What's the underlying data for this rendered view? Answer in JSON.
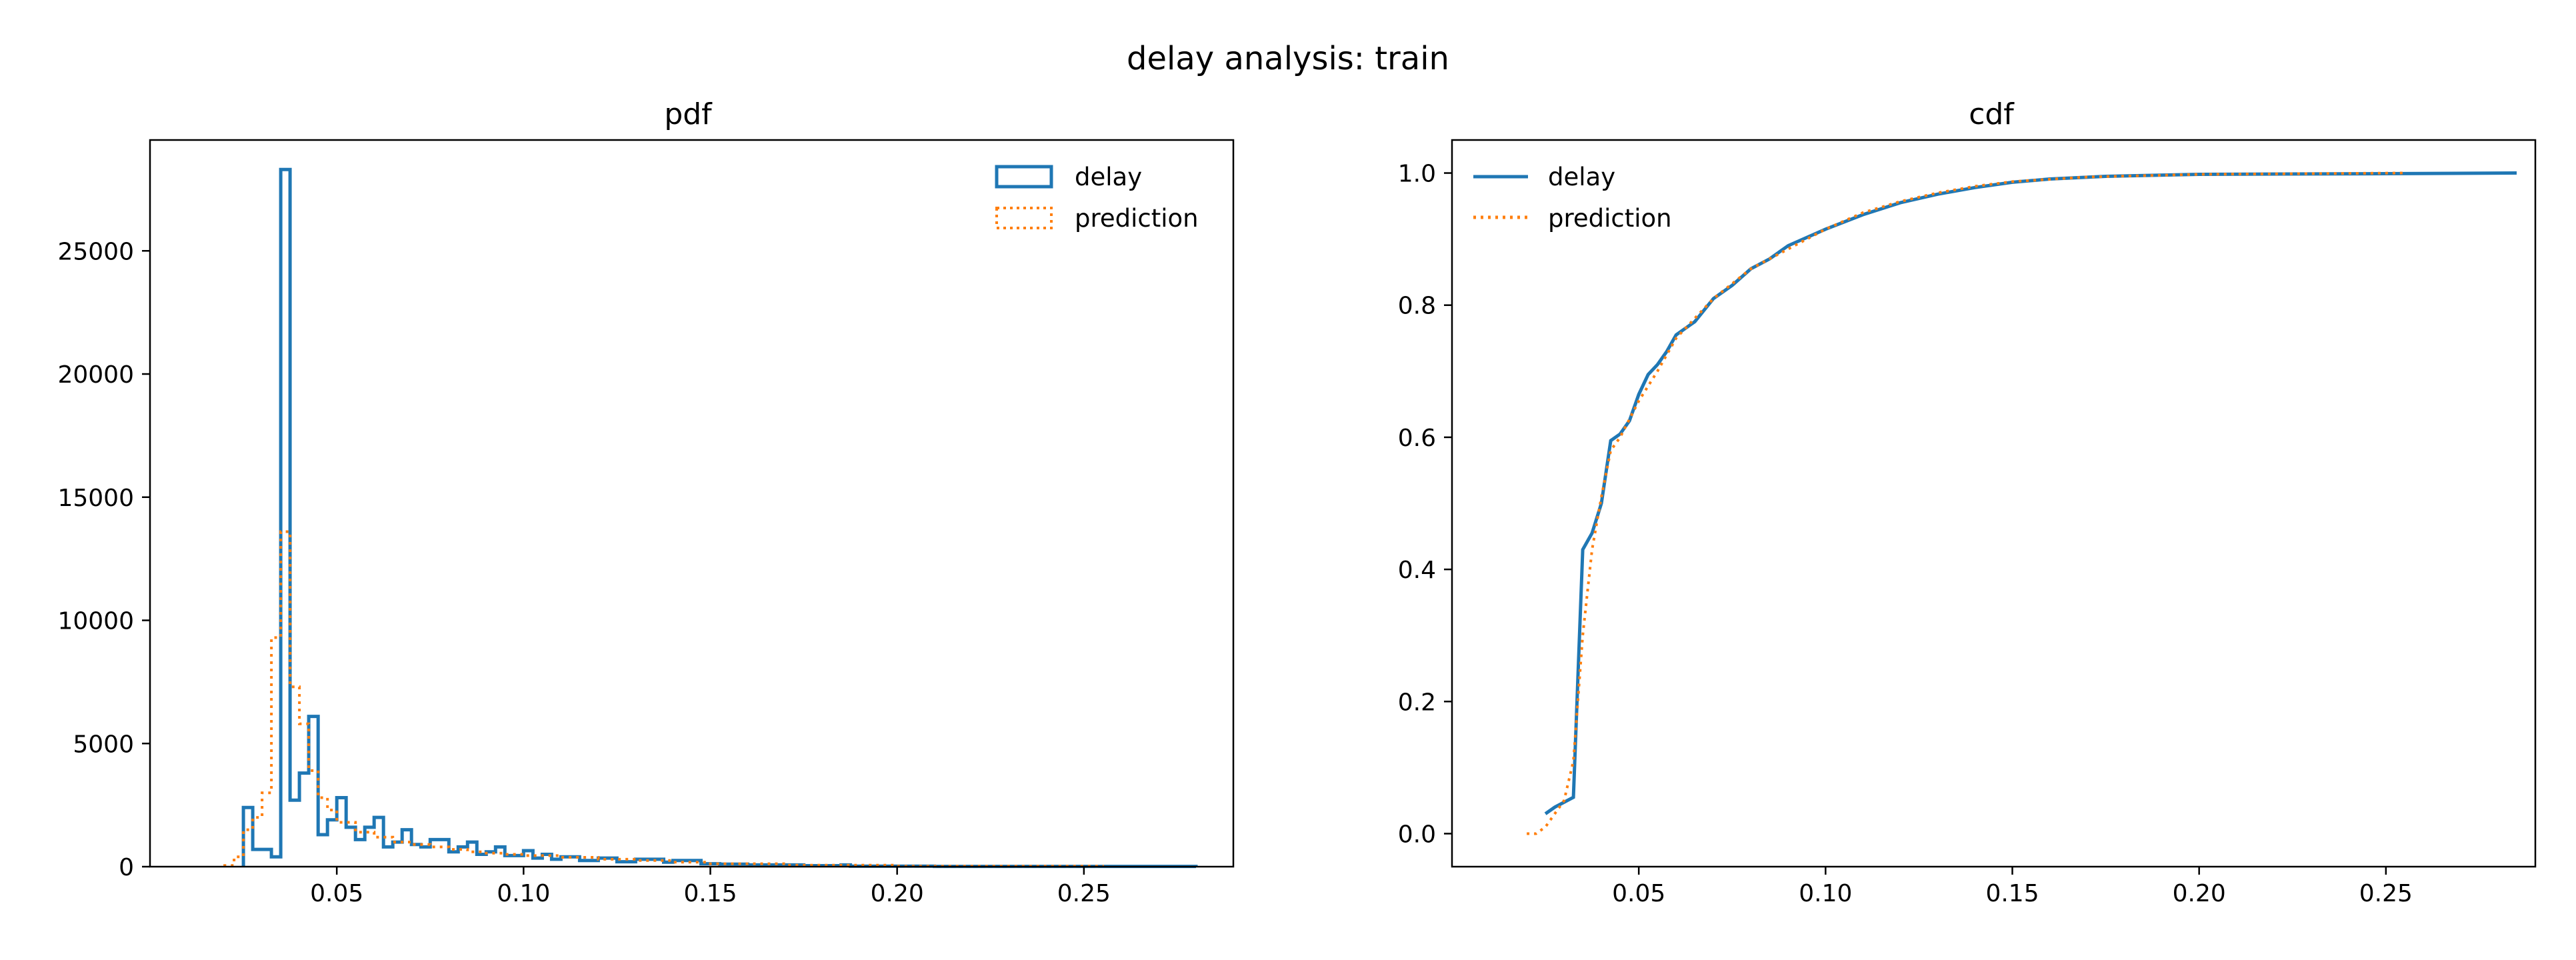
{
  "suptitle": "delay analysis: train",
  "colors": {
    "delay": "#1f77b4",
    "prediction": "#ff7f0e",
    "axes": "#000000",
    "background": "#ffffff"
  },
  "chart_data": [
    {
      "type": "histogram",
      "title": "pdf",
      "xlabel": "",
      "ylabel": "",
      "xlim": [
        0.0,
        0.29
      ],
      "ylim": [
        0,
        29500
      ],
      "xticks": [
        0.05,
        0.1,
        0.15,
        0.2,
        0.25
      ],
      "xtick_labels": [
        "0.05",
        "0.10",
        "0.15",
        "0.20",
        "0.25"
      ],
      "yticks": [
        0,
        5000,
        10000,
        15000,
        20000,
        25000
      ],
      "ytick_labels": [
        "0",
        "5000",
        "10000",
        "15000",
        "20000",
        "25000"
      ],
      "legend": {
        "placement": "top-right",
        "entries": [
          "delay",
          "prediction"
        ]
      },
      "grid": false,
      "series": [
        {
          "name": "delay",
          "style": "step-solid",
          "points": [
            [
              0.025,
              0
            ],
            [
              0.025,
              2400
            ],
            [
              0.0275,
              2400
            ],
            [
              0.0275,
              700
            ],
            [
              0.0325,
              700
            ],
            [
              0.0325,
              400
            ],
            [
              0.035,
              400
            ],
            [
              0.035,
              28300
            ],
            [
              0.0375,
              28300
            ],
            [
              0.0375,
              2700
            ],
            [
              0.04,
              2700
            ],
            [
              0.04,
              3800
            ],
            [
              0.0425,
              3800
            ],
            [
              0.0425,
              6100
            ],
            [
              0.045,
              6100
            ],
            [
              0.045,
              1300
            ],
            [
              0.0475,
              1300
            ],
            [
              0.0475,
              1900
            ],
            [
              0.05,
              1900
            ],
            [
              0.05,
              2800
            ],
            [
              0.0525,
              2800
            ],
            [
              0.0525,
              1600
            ],
            [
              0.055,
              1600
            ],
            [
              0.055,
              1100
            ],
            [
              0.0575,
              1100
            ],
            [
              0.0575,
              1600
            ],
            [
              0.06,
              1600
            ],
            [
              0.06,
              2000
            ],
            [
              0.0625,
              2000
            ],
            [
              0.0625,
              800
            ],
            [
              0.065,
              800
            ],
            [
              0.065,
              1000
            ],
            [
              0.0675,
              1000
            ],
            [
              0.0675,
              1500
            ],
            [
              0.07,
              1500
            ],
            [
              0.07,
              900
            ],
            [
              0.0725,
              900
            ],
            [
              0.0725,
              800
            ],
            [
              0.075,
              800
            ],
            [
              0.075,
              1100
            ],
            [
              0.08,
              1100
            ],
            [
              0.08,
              600
            ],
            [
              0.0825,
              600
            ],
            [
              0.0825,
              800
            ],
            [
              0.085,
              800
            ],
            [
              0.085,
              1000
            ],
            [
              0.0875,
              1000
            ],
            [
              0.0875,
              500
            ],
            [
              0.09,
              500
            ],
            [
              0.09,
              600
            ],
            [
              0.0925,
              600
            ],
            [
              0.0925,
              800
            ],
            [
              0.095,
              800
            ],
            [
              0.095,
              450
            ],
            [
              0.1,
              450
            ],
            [
              0.1,
              650
            ],
            [
              0.1025,
              650
            ],
            [
              0.1025,
              350
            ],
            [
              0.105,
              350
            ],
            [
              0.105,
              500
            ],
            [
              0.1075,
              500
            ],
            [
              0.1075,
              300
            ],
            [
              0.11,
              300
            ],
            [
              0.11,
              400
            ],
            [
              0.115,
              400
            ],
            [
              0.115,
              250
            ],
            [
              0.12,
              250
            ],
            [
              0.12,
              350
            ],
            [
              0.125,
              350
            ],
            [
              0.125,
              200
            ],
            [
              0.13,
              200
            ],
            [
              0.13,
              300
            ],
            [
              0.1375,
              300
            ],
            [
              0.1375,
              180
            ],
            [
              0.14,
              180
            ],
            [
              0.14,
              250
            ],
            [
              0.1475,
              250
            ],
            [
              0.1475,
              120
            ],
            [
              0.1525,
              120
            ],
            [
              0.1525,
              100
            ],
            [
              0.16,
              100
            ],
            [
              0.16,
              70
            ],
            [
              0.175,
              70
            ],
            [
              0.175,
              40
            ],
            [
              0.185,
              40
            ],
            [
              0.185,
              70
            ],
            [
              0.1875,
              70
            ],
            [
              0.1875,
              20
            ],
            [
              0.21,
              20
            ],
            [
              0.21,
              10
            ],
            [
              0.28,
              10
            ],
            [
              0.28,
              0
            ]
          ]
        },
        {
          "name": "prediction",
          "style": "step-dotted",
          "points": [
            [
              0.02,
              0
            ],
            [
              0.02,
              50
            ],
            [
              0.0225,
              50
            ],
            [
              0.0225,
              400
            ],
            [
              0.025,
              400
            ],
            [
              0.025,
              1500
            ],
            [
              0.0275,
              1500
            ],
            [
              0.0275,
              2000
            ],
            [
              0.03,
              2000
            ],
            [
              0.03,
              3000
            ],
            [
              0.0325,
              3000
            ],
            [
              0.0325,
              9300
            ],
            [
              0.035,
              9300
            ],
            [
              0.035,
              13600
            ],
            [
              0.0375,
              13600
            ],
            [
              0.0375,
              7300
            ],
            [
              0.04,
              7300
            ],
            [
              0.04,
              5800
            ],
            [
              0.0425,
              5800
            ],
            [
              0.0425,
              3900
            ],
            [
              0.045,
              3900
            ],
            [
              0.045,
              2800
            ],
            [
              0.0475,
              2800
            ],
            [
              0.0475,
              2300
            ],
            [
              0.05,
              2300
            ],
            [
              0.05,
              1800
            ],
            [
              0.055,
              1800
            ],
            [
              0.055,
              1400
            ],
            [
              0.06,
              1400
            ],
            [
              0.06,
              1200
            ],
            [
              0.065,
              1200
            ],
            [
              0.065,
              1000
            ],
            [
              0.07,
              1000
            ],
            [
              0.07,
              900
            ],
            [
              0.075,
              900
            ],
            [
              0.075,
              800
            ],
            [
              0.08,
              800
            ],
            [
              0.08,
              700
            ],
            [
              0.085,
              700
            ],
            [
              0.085,
              600
            ],
            [
              0.09,
              600
            ],
            [
              0.09,
              550
            ],
            [
              0.095,
              550
            ],
            [
              0.095,
              500
            ],
            [
              0.1,
              500
            ],
            [
              0.1,
              450
            ],
            [
              0.11,
              450
            ],
            [
              0.11,
              380
            ],
            [
              0.12,
              380
            ],
            [
              0.12,
              300
            ],
            [
              0.13,
              300
            ],
            [
              0.13,
              250
            ],
            [
              0.14,
              250
            ],
            [
              0.14,
              180
            ],
            [
              0.15,
              180
            ],
            [
              0.15,
              120
            ],
            [
              0.17,
              120
            ],
            [
              0.17,
              60
            ],
            [
              0.2,
              60
            ],
            [
              0.2,
              20
            ],
            [
              0.255,
              20
            ],
            [
              0.255,
              0
            ]
          ]
        }
      ]
    },
    {
      "type": "line",
      "title": "cdf",
      "xlabel": "",
      "ylabel": "",
      "xlim": [
        0.0,
        0.29
      ],
      "ylim": [
        -0.05,
        1.05
      ],
      "xticks": [
        0.05,
        0.1,
        0.15,
        0.2,
        0.25
      ],
      "xtick_labels": [
        "0.05",
        "0.10",
        "0.15",
        "0.20",
        "0.25"
      ],
      "yticks": [
        0.0,
        0.2,
        0.4,
        0.6,
        0.8,
        1.0
      ],
      "ytick_labels": [
        "0.0",
        "0.2",
        "0.4",
        "0.6",
        "0.8",
        "1.0"
      ],
      "legend": {
        "placement": "top-left",
        "entries": [
          "delay",
          "prediction"
        ]
      },
      "grid": false,
      "series": [
        {
          "name": "delay",
          "style": "solid",
          "points": [
            [
              0.025,
              0.03
            ],
            [
              0.0275,
              0.04
            ],
            [
              0.0325,
              0.055
            ],
            [
              0.035,
              0.43
            ],
            [
              0.0375,
              0.455
            ],
            [
              0.04,
              0.5
            ],
            [
              0.0425,
              0.595
            ],
            [
              0.045,
              0.605
            ],
            [
              0.0475,
              0.625
            ],
            [
              0.05,
              0.665
            ],
            [
              0.0525,
              0.695
            ],
            [
              0.055,
              0.71
            ],
            [
              0.0575,
              0.73
            ],
            [
              0.06,
              0.755
            ],
            [
              0.065,
              0.775
            ],
            [
              0.07,
              0.81
            ],
            [
              0.075,
              0.83
            ],
            [
              0.08,
              0.855
            ],
            [
              0.085,
              0.87
            ],
            [
              0.09,
              0.89
            ],
            [
              0.1,
              0.915
            ],
            [
              0.11,
              0.937
            ],
            [
              0.12,
              0.955
            ],
            [
              0.13,
              0.968
            ],
            [
              0.14,
              0.978
            ],
            [
              0.15,
              0.986
            ],
            [
              0.16,
              0.991
            ],
            [
              0.175,
              0.995
            ],
            [
              0.2,
              0.998
            ],
            [
              0.25,
              0.999
            ],
            [
              0.285,
              1.0
            ]
          ]
        },
        {
          "name": "prediction",
          "style": "dotted",
          "points": [
            [
              0.02,
              0.0
            ],
            [
              0.0225,
              0.0
            ],
            [
              0.025,
              0.01
            ],
            [
              0.0275,
              0.03
            ],
            [
              0.03,
              0.05
            ],
            [
              0.0325,
              0.11
            ],
            [
              0.035,
              0.3
            ],
            [
              0.0375,
              0.43
            ],
            [
              0.04,
              0.51
            ],
            [
              0.0425,
              0.58
            ],
            [
              0.045,
              0.6
            ],
            [
              0.05,
              0.655
            ],
            [
              0.055,
              0.7
            ],
            [
              0.06,
              0.75
            ],
            [
              0.065,
              0.78
            ],
            [
              0.07,
              0.81
            ],
            [
              0.08,
              0.855
            ],
            [
              0.09,
              0.885
            ],
            [
              0.1,
              0.915
            ],
            [
              0.11,
              0.94
            ],
            [
              0.12,
              0.957
            ],
            [
              0.13,
              0.97
            ],
            [
              0.14,
              0.98
            ],
            [
              0.15,
              0.987
            ],
            [
              0.17,
              0.994
            ],
            [
              0.2,
              0.998
            ],
            [
              0.255,
              1.0
            ]
          ]
        }
      ]
    }
  ]
}
